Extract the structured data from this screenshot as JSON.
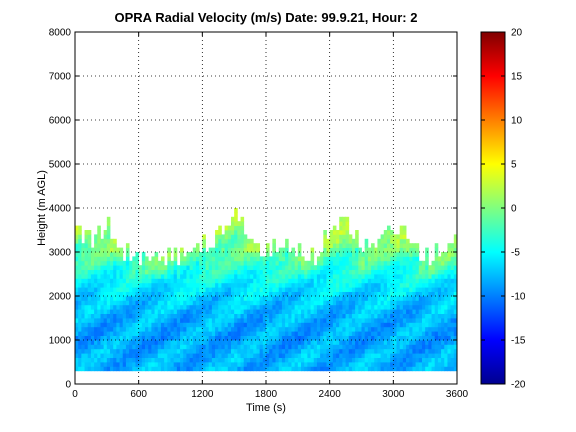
{
  "chart_data": {
    "type": "heatmap",
    "title": "OPRA Radial Velocity (m/s)  Date: 99.9.21, Hour: 2",
    "xlabel": "Time (s)",
    "ylabel": "Height (m AGL)",
    "xlim": [
      0,
      3600
    ],
    "ylim": [
      0,
      8000
    ],
    "xticks": [
      0,
      600,
      1200,
      1800,
      2400,
      3000,
      3600
    ],
    "yticks": [
      0,
      1000,
      2000,
      3000,
      4000,
      5000,
      6000,
      7000,
      8000
    ],
    "grid": true,
    "colorbar": {
      "range": [
        -20,
        20
      ],
      "ticks": [
        -20,
        -15,
        -10,
        -5,
        0,
        5,
        10,
        15,
        20
      ],
      "colormap": "jet"
    },
    "data_extent": {
      "height_min": 300,
      "height_max_approx": [
        3500,
        3200,
        3600,
        3000,
        2850,
        2800,
        2900,
        2950,
        3100,
        3300,
        3750,
        3300,
        3000,
        3200,
        2950,
        2800,
        3400,
        3600,
        3000,
        3200,
        3400,
        3300,
        2800,
        3000,
        3500
      ],
      "time_step": 150
    },
    "typical_velocity": [
      {
        "height": 500,
        "value": -8
      },
      {
        "height": 1000,
        "value": -8.5
      },
      {
        "height": 1500,
        "value": -8
      },
      {
        "height": 2000,
        "value": -6.5
      },
      {
        "height": 2500,
        "value": -4
      },
      {
        "height": 3000,
        "value": -1.5
      },
      {
        "height": 3500,
        "value": 0
      }
    ]
  }
}
